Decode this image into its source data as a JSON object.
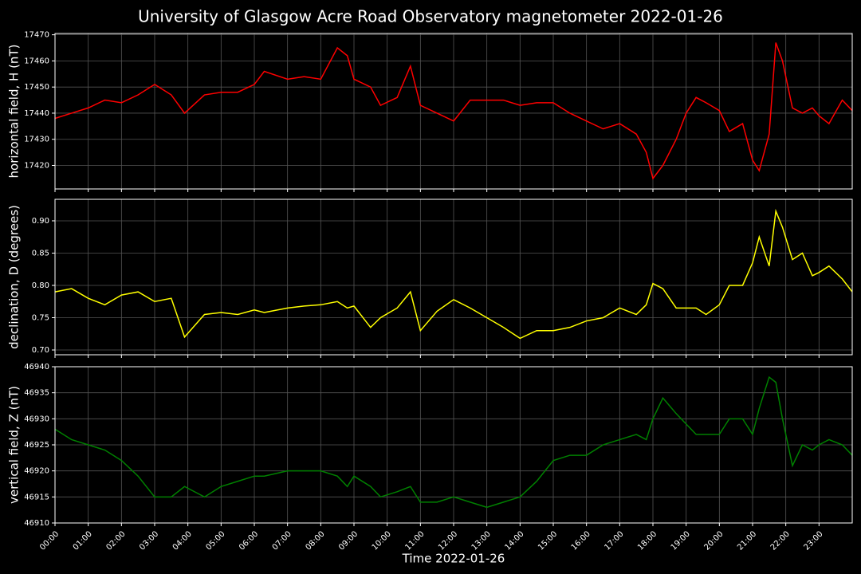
{
  "title": "University of Glasgow Acre Road Observatory magnetometer 2022-01-26",
  "chart_data": [
    {
      "type": "line",
      "ylabel": "horizontal field, H (nT)",
      "color": "#ff0000",
      "x": [
        0,
        0.5,
        1,
        1.5,
        2,
        2.5,
        3,
        3.5,
        3.9,
        4.5,
        5,
        5.5,
        6,
        6.3,
        7,
        7.5,
        8,
        8.5,
        8.8,
        9,
        9.5,
        9.8,
        10.3,
        10.7,
        11,
        11.5,
        12,
        12.5,
        13,
        13.5,
        14,
        14.5,
        15,
        15.5,
        16,
        16.5,
        17,
        17.5,
        17.8,
        18,
        18.3,
        18.7,
        19,
        19.3,
        19.6,
        20,
        20.3,
        20.7,
        21,
        21.2,
        21.5,
        21.7,
        21.9,
        22.2,
        22.5,
        22.8,
        23,
        23.3,
        23.7,
        24
      ],
      "values": [
        17438,
        17440,
        17442,
        17445,
        17444,
        17447,
        17451,
        17447,
        17440,
        17447,
        17448,
        17448,
        17451,
        17456,
        17453,
        17454,
        17453,
        17465,
        17462,
        17453,
        17450,
        17443,
        17446,
        17458,
        17443,
        17440,
        17437,
        17445,
        17445,
        17445,
        17443,
        17444,
        17444,
        17440,
        17437,
        17434,
        17436,
        17432,
        17425,
        17415,
        17420,
        17430,
        17440,
        17446,
        17444,
        17441,
        17433,
        17436,
        17422,
        17418,
        17432,
        17467,
        17460,
        17442,
        17440,
        17442,
        17439,
        17436,
        17445,
        17441
      ],
      "xlim": [
        0,
        24
      ],
      "xticks": [
        0,
        1,
        2,
        3,
        4,
        5,
        6,
        7,
        8,
        9,
        10,
        11,
        12,
        13,
        14,
        15,
        16,
        17,
        18,
        19,
        20,
        21,
        22,
        23
      ],
      "ylim": [
        17411,
        17470.5
      ],
      "yticks": [
        17420,
        17430,
        17440,
        17450,
        17460,
        17470
      ],
      "grid": true
    },
    {
      "type": "line",
      "ylabel": "declination, D (degrees)",
      "color": "#ffff00",
      "x": [
        0,
        0.5,
        1,
        1.5,
        2,
        2.5,
        3,
        3.5,
        3.9,
        4.5,
        5,
        5.5,
        6,
        6.3,
        7,
        7.5,
        8,
        8.5,
        8.8,
        9,
        9.5,
        9.8,
        10.3,
        10.7,
        11,
        11.5,
        12,
        12.5,
        13,
        13.5,
        14,
        14.5,
        15,
        15.5,
        16,
        16.5,
        17,
        17.5,
        17.8,
        18,
        18.3,
        18.7,
        19,
        19.3,
        19.6,
        20,
        20.3,
        20.7,
        21,
        21.2,
        21.5,
        21.7,
        21.9,
        22.2,
        22.5,
        22.8,
        23,
        23.3,
        23.7,
        24
      ],
      "values": [
        0.79,
        0.795,
        0.78,
        0.77,
        0.785,
        0.79,
        0.775,
        0.78,
        0.72,
        0.755,
        0.758,
        0.755,
        0.762,
        0.758,
        0.765,
        0.768,
        0.77,
        0.775,
        0.765,
        0.768,
        0.735,
        0.75,
        0.765,
        0.79,
        0.73,
        0.76,
        0.778,
        0.765,
        0.75,
        0.735,
        0.718,
        0.73,
        0.73,
        0.735,
        0.745,
        0.75,
        0.765,
        0.755,
        0.77,
        0.803,
        0.795,
        0.765,
        0.765,
        0.765,
        0.755,
        0.77,
        0.8,
        0.8,
        0.835,
        0.875,
        0.83,
        0.915,
        0.89,
        0.84,
        0.85,
        0.815,
        0.82,
        0.83,
        0.81,
        0.79
      ],
      "xlim": [
        0,
        24
      ],
      "xticks": [
        0,
        1,
        2,
        3,
        4,
        5,
        6,
        7,
        8,
        9,
        10,
        11,
        12,
        13,
        14,
        15,
        16,
        17,
        18,
        19,
        20,
        21,
        22,
        23
      ],
      "ylim": [
        0.6926,
        0.9333
      ],
      "yticks": [
        {
          "value": 0.7,
          "label": "0.70"
        },
        0.75,
        {
          "value": 0.8,
          "label": "0.80"
        },
        0.85,
        {
          "value": 0.9,
          "label": "0.90"
        }
      ],
      "grid": true
    },
    {
      "type": "line",
      "ylabel": "vertical field, Z (nT)",
      "xlabel": "Time 2022-01-26",
      "color": "#008000",
      "x": [
        0,
        0.5,
        1,
        1.5,
        2,
        2.5,
        3,
        3.5,
        3.9,
        4.5,
        5,
        5.5,
        6,
        6.3,
        7,
        7.5,
        8,
        8.5,
        8.8,
        9,
        9.5,
        9.8,
        10.3,
        10.7,
        11,
        11.5,
        12,
        12.5,
        13,
        13.5,
        14,
        14.5,
        15,
        15.5,
        16,
        16.5,
        17,
        17.5,
        17.8,
        18,
        18.3,
        18.7,
        19,
        19.3,
        19.6,
        20,
        20.3,
        20.7,
        21,
        21.2,
        21.5,
        21.7,
        21.9,
        22.2,
        22.5,
        22.8,
        23,
        23.3,
        23.7,
        24
      ],
      "values": [
        46928,
        46926,
        46925,
        46924,
        46922,
        46919,
        46915,
        46915,
        46917,
        46915,
        46917,
        46918,
        46919,
        46919,
        46920,
        46920,
        46920,
        46919,
        46917,
        46919,
        46917,
        46915,
        46916,
        46917,
        46914,
        46914,
        46915,
        46914,
        46913,
        46914,
        46915,
        46918,
        46922,
        46923,
        46923,
        46925,
        46926,
        46927,
        46926,
        46930,
        46934,
        46931,
        46929,
        46927,
        46927,
        46927,
        46930,
        46930,
        46927,
        46932,
        46938,
        46937,
        46930,
        46921,
        46925,
        46924,
        46925,
        46926,
        46925,
        46923
      ],
      "xlim": [
        0,
        24
      ],
      "xticks": [
        {
          "value": 0,
          "label": "00:00"
        },
        {
          "value": 1,
          "label": "01:00"
        },
        {
          "value": 2,
          "label": "02:00"
        },
        {
          "value": 3,
          "label": "03:00"
        },
        {
          "value": 4,
          "label": "04:00"
        },
        {
          "value": 5,
          "label": "05:00"
        },
        {
          "value": 6,
          "label": "06:00"
        },
        {
          "value": 7,
          "label": "07:00"
        },
        {
          "value": 8,
          "label": "08:00"
        },
        {
          "value": 9,
          "label": "09:00"
        },
        {
          "value": 10,
          "label": "10:00"
        },
        {
          "value": 11,
          "label": "11:00"
        },
        {
          "value": 12,
          "label": "12:00"
        },
        {
          "value": 13,
          "label": "13:00"
        },
        {
          "value": 14,
          "label": "14:00"
        },
        {
          "value": 15,
          "label": "15:00"
        },
        {
          "value": 16,
          "label": "16:00"
        },
        {
          "value": 17,
          "label": "17:00"
        },
        {
          "value": 18,
          "label": "18:00"
        },
        {
          "value": 19,
          "label": "19:00"
        },
        {
          "value": 20,
          "label": "20:00"
        },
        {
          "value": 21,
          "label": "21:00"
        },
        {
          "value": 22,
          "label": "22:00"
        },
        {
          "value": 23,
          "label": "23:00"
        }
      ],
      "ylim": [
        46910,
        46940
      ],
      "yticks": [
        46910,
        46915,
        46920,
        46925,
        46930,
        46935,
        46940
      ],
      "grid": true
    }
  ]
}
